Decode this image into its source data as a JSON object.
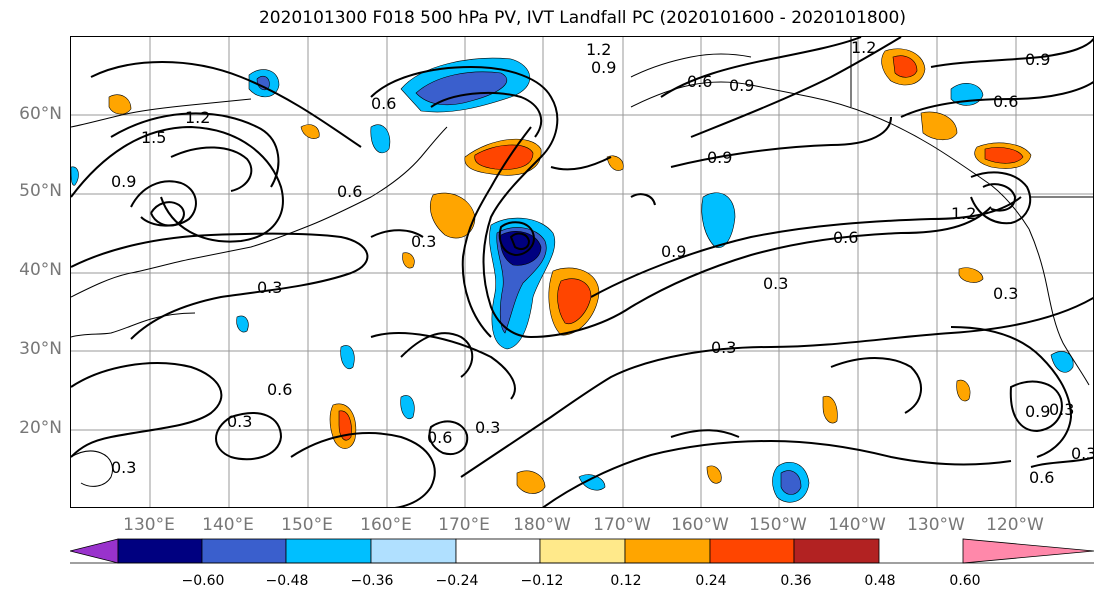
{
  "title": "2020101300 F018 500 hPa PV, IVT Landfall PC (2020101600 - 2020101800)",
  "lat_labels": [
    "60°N",
    "50°N",
    "40°N",
    "30°N",
    "20°N"
  ],
  "lon_labels": [
    "130°E",
    "140°E",
    "150°E",
    "160°E",
    "170°E",
    "180°W",
    "170°W",
    "160°W",
    "150°W",
    "140°W",
    "130°W",
    "120°W"
  ],
  "contour_labels": [
    "1.2",
    "0.9",
    "0.6",
    "1.2",
    "0.9",
    "0.6",
    "0.6",
    "1.5",
    "1.2",
    "0.9",
    "0.3",
    "0.6",
    "0.3",
    "0.9",
    "0.6",
    "0.3",
    "0.3",
    "0.3",
    "0.3",
    "0.6",
    "0.3",
    "0.6",
    "0.3",
    "0.9",
    "0.6",
    "0.3",
    "0.3",
    "0.9",
    "1.2",
    "0.9"
  ],
  "colorbar": {
    "ticks": [
      "−0.60",
      "−0.48",
      "−0.36",
      "−0.24",
      "−0.12",
      "0.12",
      "0.24",
      "0.36",
      "0.48",
      "0.60"
    ],
    "colors": [
      "#9932CC",
      "#000080",
      "#3A5FCD",
      "#00BFFF",
      "#B0E0FF",
      "#FFFFFF",
      "#FFE98A",
      "#FFA500",
      "#FF4500",
      "#B22222",
      "#FF88AA"
    ]
  }
}
